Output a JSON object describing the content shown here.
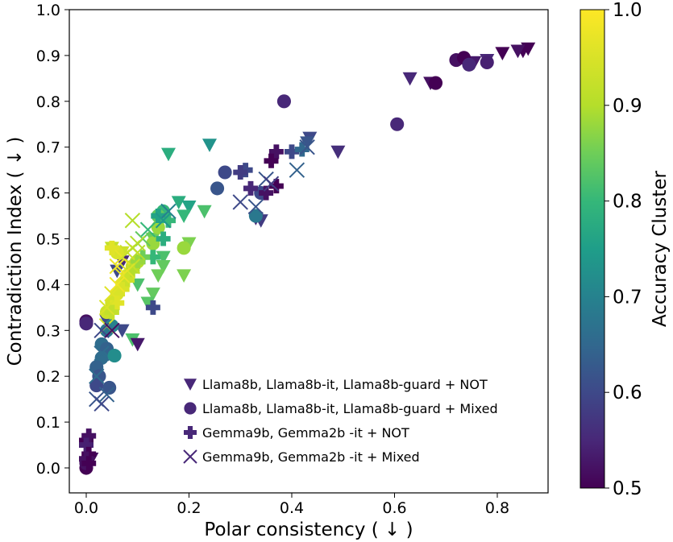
{
  "chart_data": {
    "type": "scatter",
    "xlabel": "Polar consistency ( ↓ )",
    "ylabel": "Contradiction Index ( ↓ )",
    "xlim": [
      -0.04,
      0.9
    ],
    "ylim": [
      -0.03,
      1.0
    ],
    "xticks": [
      "0.0",
      "0.2",
      "0.4",
      "0.6",
      "0.8"
    ],
    "yticks": [
      "0.0",
      "0.1",
      "0.2",
      "0.3",
      "0.4",
      "0.5",
      "0.6",
      "0.7",
      "0.8",
      "0.9",
      "1.0"
    ],
    "grid": false,
    "legend_placement": "lower-right",
    "colorbar": {
      "label": "Accuracy Cluster",
      "range": [
        0.5,
        1.0
      ],
      "ticks": [
        "0.5",
        "0.6",
        "0.7",
        "0.8",
        "0.9",
        "1.0"
      ],
      "colormap": "viridis"
    },
    "series": [
      {
        "name": "Llama8b, Llama8b-it, Llama8b-guard + NOT",
        "marker": "triangle-down",
        "points": [
          [
            0.86,
            0.915,
            0.5
          ],
          [
            0.85,
            0.91,
            0.5
          ],
          [
            0.84,
            0.91,
            0.52
          ],
          [
            0.81,
            0.905,
            0.5
          ],
          [
            0.78,
            0.89,
            0.55
          ],
          [
            0.755,
            0.885,
            0.53
          ],
          [
            0.63,
            0.85,
            0.55
          ],
          [
            0.67,
            0.84,
            0.52
          ],
          [
            0.49,
            0.69,
            0.56
          ],
          [
            0.435,
            0.72,
            0.6
          ],
          [
            0.43,
            0.71,
            0.62
          ],
          [
            0.34,
            0.54,
            0.58
          ],
          [
            0.33,
            0.545,
            0.55
          ],
          [
            0.24,
            0.705,
            0.73
          ],
          [
            0.16,
            0.685,
            0.78
          ],
          [
            0.18,
            0.58,
            0.78
          ],
          [
            0.2,
            0.57,
            0.76
          ],
          [
            0.23,
            0.56,
            0.82
          ],
          [
            0.19,
            0.55,
            0.8
          ],
          [
            0.2,
            0.49,
            0.86
          ],
          [
            0.19,
            0.42,
            0.86
          ],
          [
            0.13,
            0.5,
            0.85
          ],
          [
            0.15,
            0.46,
            0.82
          ],
          [
            0.15,
            0.44,
            0.84
          ],
          [
            0.14,
            0.42,
            0.85
          ],
          [
            0.13,
            0.38,
            0.84
          ],
          [
            0.12,
            0.36,
            0.83
          ],
          [
            0.1,
            0.4,
            0.82
          ],
          [
            0.09,
            0.28,
            0.82
          ],
          [
            0.1,
            0.27,
            0.53
          ],
          [
            0.07,
            0.45,
            0.55
          ],
          [
            0.06,
            0.43,
            0.6
          ],
          [
            0.04,
            0.32,
            0.6
          ],
          [
            0.07,
            0.3,
            0.6
          ],
          [
            0.01,
            0.02,
            0.52
          ],
          [
            0.0,
            0.0,
            0.5
          ],
          [
            0.05,
            0.48,
            0.92
          ],
          [
            0.07,
            0.47,
            0.93
          ]
        ]
      },
      {
        "name": "Llama8b, Llama8b-it, Llama8b-guard + Mixed",
        "marker": "circle",
        "points": [
          [
            0.72,
            0.89,
            0.52
          ],
          [
            0.735,
            0.895,
            0.5
          ],
          [
            0.745,
            0.88,
            0.55
          ],
          [
            0.78,
            0.885,
            0.54
          ],
          [
            0.68,
            0.84,
            0.5
          ],
          [
            0.605,
            0.75,
            0.55
          ],
          [
            0.385,
            0.8,
            0.55
          ],
          [
            0.27,
            0.645,
            0.6
          ],
          [
            0.255,
            0.61,
            0.62
          ],
          [
            0.33,
            0.55,
            0.68
          ],
          [
            0.34,
            0.6,
            0.6
          ],
          [
            0.15,
            0.56,
            0.8
          ],
          [
            0.14,
            0.55,
            0.84
          ],
          [
            0.14,
            0.525,
            0.88
          ],
          [
            0.13,
            0.49,
            0.88
          ],
          [
            0.19,
            0.48,
            0.88
          ],
          [
            0.1,
            0.45,
            0.9
          ],
          [
            0.09,
            0.44,
            0.93
          ],
          [
            0.08,
            0.42,
            0.95
          ],
          [
            0.07,
            0.4,
            0.96
          ],
          [
            0.06,
            0.38,
            0.95
          ],
          [
            0.05,
            0.36,
            0.94
          ],
          [
            0.04,
            0.34,
            0.93
          ],
          [
            0.05,
            0.31,
            0.7
          ],
          [
            0.04,
            0.3,
            0.68
          ],
          [
            0.03,
            0.27,
            0.66
          ],
          [
            0.04,
            0.26,
            0.64
          ],
          [
            0.03,
            0.24,
            0.66
          ],
          [
            0.02,
            0.22,
            0.64
          ],
          [
            0.025,
            0.2,
            0.62
          ],
          [
            0.02,
            0.18,
            0.6
          ],
          [
            0.045,
            0.175,
            0.62
          ],
          [
            0.055,
            0.245,
            0.72
          ],
          [
            0.0,
            0.32,
            0.52
          ],
          [
            0.0,
            0.315,
            0.55
          ],
          [
            0.0,
            0.0,
            0.5
          ],
          [
            0.0,
            0.01,
            0.52
          ],
          [
            0.06,
            0.47,
            0.95
          ]
        ]
      },
      {
        "name": "Gemma9b, Gemma2b -it + NOT",
        "marker": "plus",
        "points": [
          [
            0.37,
            0.69,
            0.52
          ],
          [
            0.36,
            0.67,
            0.5
          ],
          [
            0.35,
            0.6,
            0.52
          ],
          [
            0.37,
            0.615,
            0.5
          ],
          [
            0.32,
            0.61,
            0.55
          ],
          [
            0.31,
            0.65,
            0.6
          ],
          [
            0.3,
            0.645,
            0.58
          ],
          [
            0.4,
            0.69,
            0.6
          ],
          [
            0.42,
            0.695,
            0.65
          ],
          [
            0.14,
            0.55,
            0.76
          ],
          [
            0.16,
            0.54,
            0.8
          ],
          [
            0.15,
            0.5,
            0.78
          ],
          [
            0.13,
            0.46,
            0.8
          ],
          [
            0.13,
            0.35,
            0.6
          ],
          [
            0.11,
            0.46,
            0.85
          ],
          [
            0.1,
            0.45,
            0.88
          ],
          [
            0.09,
            0.43,
            0.9
          ],
          [
            0.08,
            0.41,
            0.93
          ],
          [
            0.07,
            0.39,
            0.95
          ],
          [
            0.06,
            0.36,
            0.96
          ],
          [
            0.05,
            0.34,
            0.92
          ],
          [
            0.05,
            0.48,
            0.96
          ],
          [
            0.0,
            0.06,
            0.5
          ],
          [
            0.005,
            0.07,
            0.52
          ],
          [
            0.0,
            0.05,
            0.54
          ],
          [
            0.005,
            0.03,
            0.5
          ],
          [
            0.0,
            0.02,
            0.52
          ],
          [
            0.005,
            0.01,
            0.5
          ]
        ]
      },
      {
        "name": "Gemma9b, Gemma2b -it + Mixed",
        "marker": "x",
        "points": [
          [
            0.43,
            0.7,
            0.62
          ],
          [
            0.41,
            0.65,
            0.64
          ],
          [
            0.35,
            0.63,
            0.62
          ],
          [
            0.36,
            0.62,
            0.58
          ],
          [
            0.3,
            0.58,
            0.6
          ],
          [
            0.33,
            0.57,
            0.62
          ],
          [
            0.16,
            0.56,
            0.7
          ],
          [
            0.15,
            0.54,
            0.74
          ],
          [
            0.12,
            0.52,
            0.8
          ],
          [
            0.11,
            0.5,
            0.84
          ],
          [
            0.09,
            0.54,
            0.9
          ],
          [
            0.1,
            0.47,
            0.9
          ],
          [
            0.09,
            0.44,
            0.92
          ],
          [
            0.08,
            0.43,
            0.95
          ],
          [
            0.07,
            0.42,
            0.97
          ],
          [
            0.06,
            0.4,
            0.98
          ],
          [
            0.05,
            0.38,
            0.96
          ],
          [
            0.04,
            0.35,
            0.95
          ],
          [
            0.04,
            0.31,
            0.94
          ],
          [
            0.03,
            0.3,
            0.6
          ],
          [
            0.03,
            0.25,
            0.66
          ],
          [
            0.02,
            0.2,
            0.66
          ],
          [
            0.02,
            0.15,
            0.62
          ],
          [
            0.03,
            0.14,
            0.6
          ],
          [
            0.04,
            0.16,
            0.64
          ],
          [
            0.05,
            0.3,
            0.52
          ],
          [
            0.06,
            0.44,
            0.98
          ],
          [
            0.07,
            0.46,
            0.97
          ],
          [
            0.08,
            0.47,
            0.93
          ],
          [
            0.09,
            0.48,
            0.92
          ],
          [
            0.1,
            0.49,
            0.9
          ]
        ]
      }
    ]
  }
}
